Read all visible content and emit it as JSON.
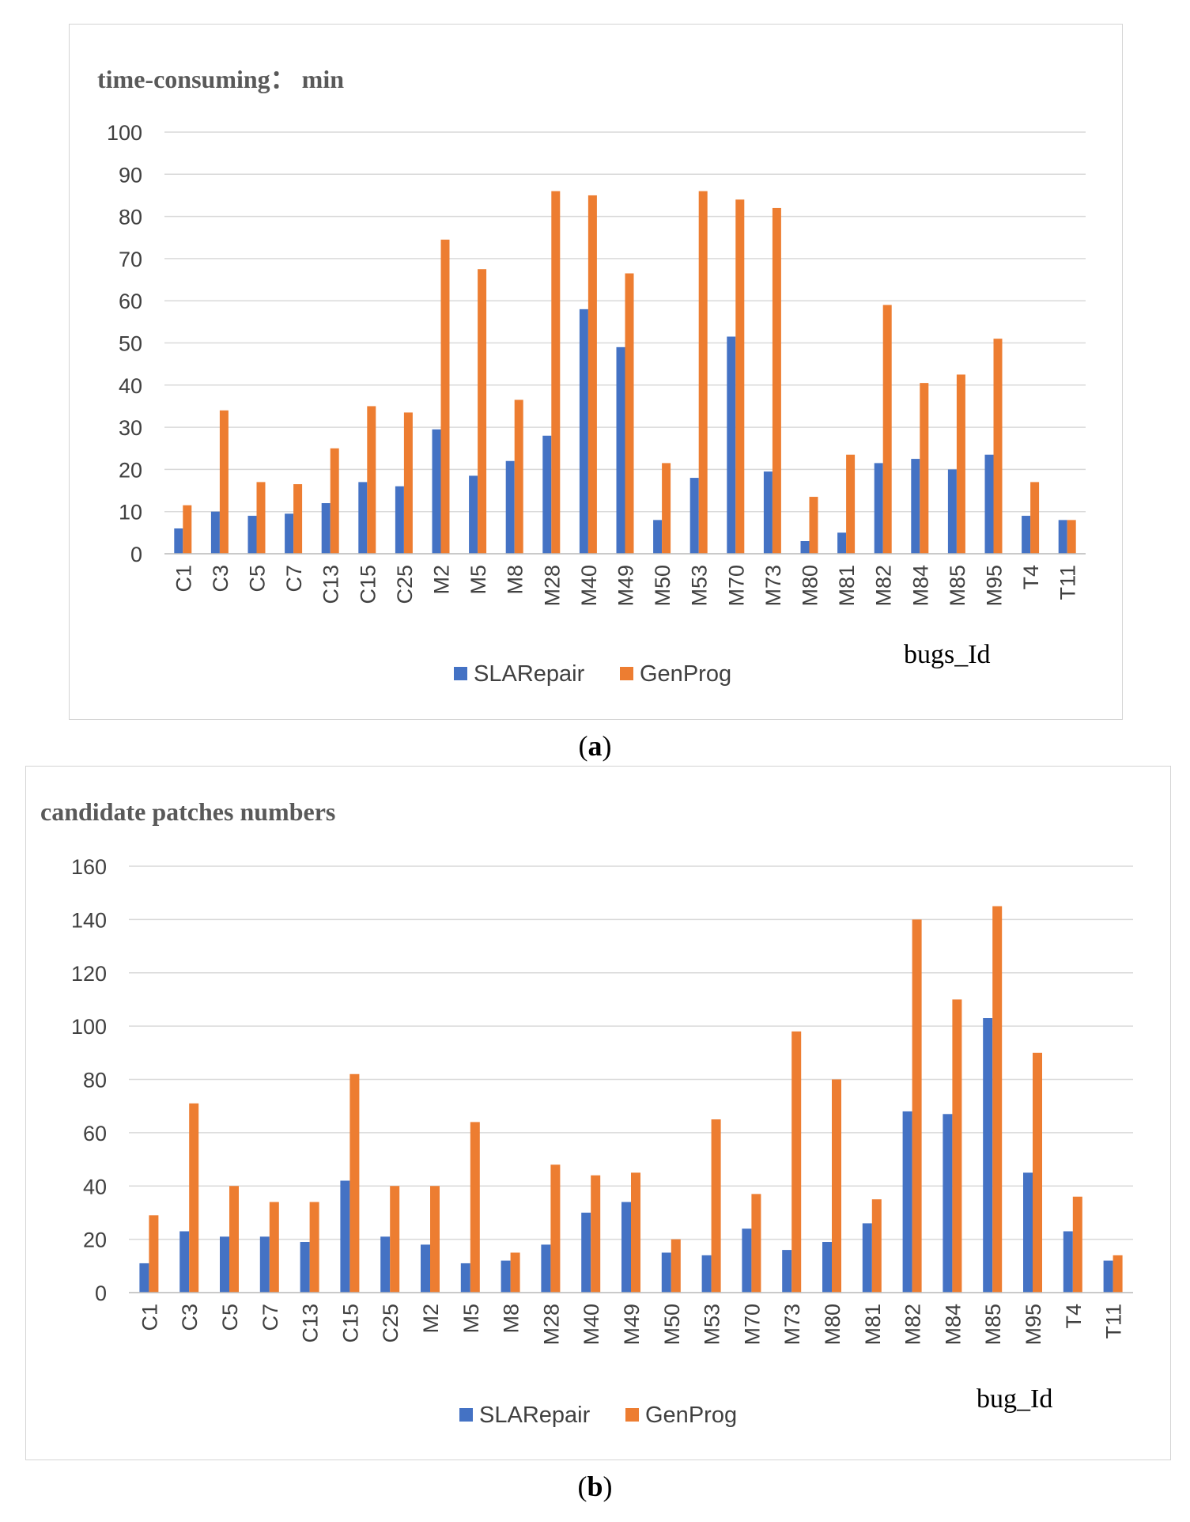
{
  "captions": {
    "a_open": "(",
    "a_letter": "a",
    "a_close": ")",
    "b_open": "(",
    "b_letter": "b",
    "b_close": ")"
  },
  "chart_data": [
    {
      "type": "bar",
      "title": "time-consuming：  min",
      "xlabel": "bugs_Id",
      "ylabel": "",
      "ylim": [
        0,
        100
      ],
      "yticks": [
        0,
        10,
        20,
        30,
        40,
        50,
        60,
        70,
        80,
        90,
        100
      ],
      "grid": true,
      "legend_position": "bottom",
      "categories": [
        "C1",
        "C3",
        "C5",
        "C7",
        "C13",
        "C15",
        "C25",
        "M2",
        "M5",
        "M8",
        "M28",
        "M40",
        "M49",
        "M50",
        "M53",
        "M70",
        "M73",
        "M80",
        "M81",
        "M82",
        "M84",
        "M85",
        "M95",
        "T4",
        "T11"
      ],
      "series": [
        {
          "name": "SLARepair",
          "color": "#4472C4",
          "values": [
            6,
            10,
            9,
            9.5,
            12,
            17,
            16,
            29.5,
            18.5,
            22,
            28,
            58,
            49,
            8,
            18,
            51.5,
            19.5,
            3,
            5,
            21.5,
            22.5,
            20,
            23.5,
            9,
            8
          ]
        },
        {
          "name": "GenProg",
          "color": "#ED7D31",
          "values": [
            11.5,
            34,
            17,
            16.5,
            25,
            35,
            33.5,
            74.5,
            67.5,
            36.5,
            86,
            85,
            66.5,
            21.5,
            86,
            84,
            82,
            13.5,
            23.5,
            59,
            40.5,
            42.5,
            51,
            17,
            8
          ]
        }
      ]
    },
    {
      "type": "bar",
      "title": "candidate  patches  numbers",
      "xlabel": "bug_Id",
      "ylabel": "",
      "ylim": [
        0,
        160
      ],
      "yticks": [
        0,
        20,
        40,
        60,
        80,
        100,
        120,
        140,
        160
      ],
      "grid": true,
      "legend_position": "bottom",
      "categories": [
        "C1",
        "C3",
        "C5",
        "C7",
        "C13",
        "C15",
        "C25",
        "M2",
        "M5",
        "M8",
        "M28",
        "M40",
        "M49",
        "M50",
        "M53",
        "M70",
        "M73",
        "M80",
        "M81",
        "M82",
        "M84",
        "M85",
        "M95",
        "T4",
        "T11"
      ],
      "series": [
        {
          "name": "SLARepair",
          "color": "#4472C4",
          "values": [
            11,
            23,
            21,
            21,
            19,
            42,
            21,
            18,
            11,
            12,
            18,
            30,
            34,
            15,
            14,
            24,
            16,
            19,
            26,
            68,
            67,
            103,
            45,
            23,
            12
          ]
        },
        {
          "name": "GenProg",
          "color": "#ED7D31",
          "values": [
            29,
            71,
            40,
            34,
            34,
            82,
            40,
            40,
            64,
            15,
            48,
            44,
            45,
            20,
            65,
            37,
            98,
            80,
            35,
            140,
            110,
            145,
            90,
            36,
            14
          ]
        }
      ]
    }
  ]
}
